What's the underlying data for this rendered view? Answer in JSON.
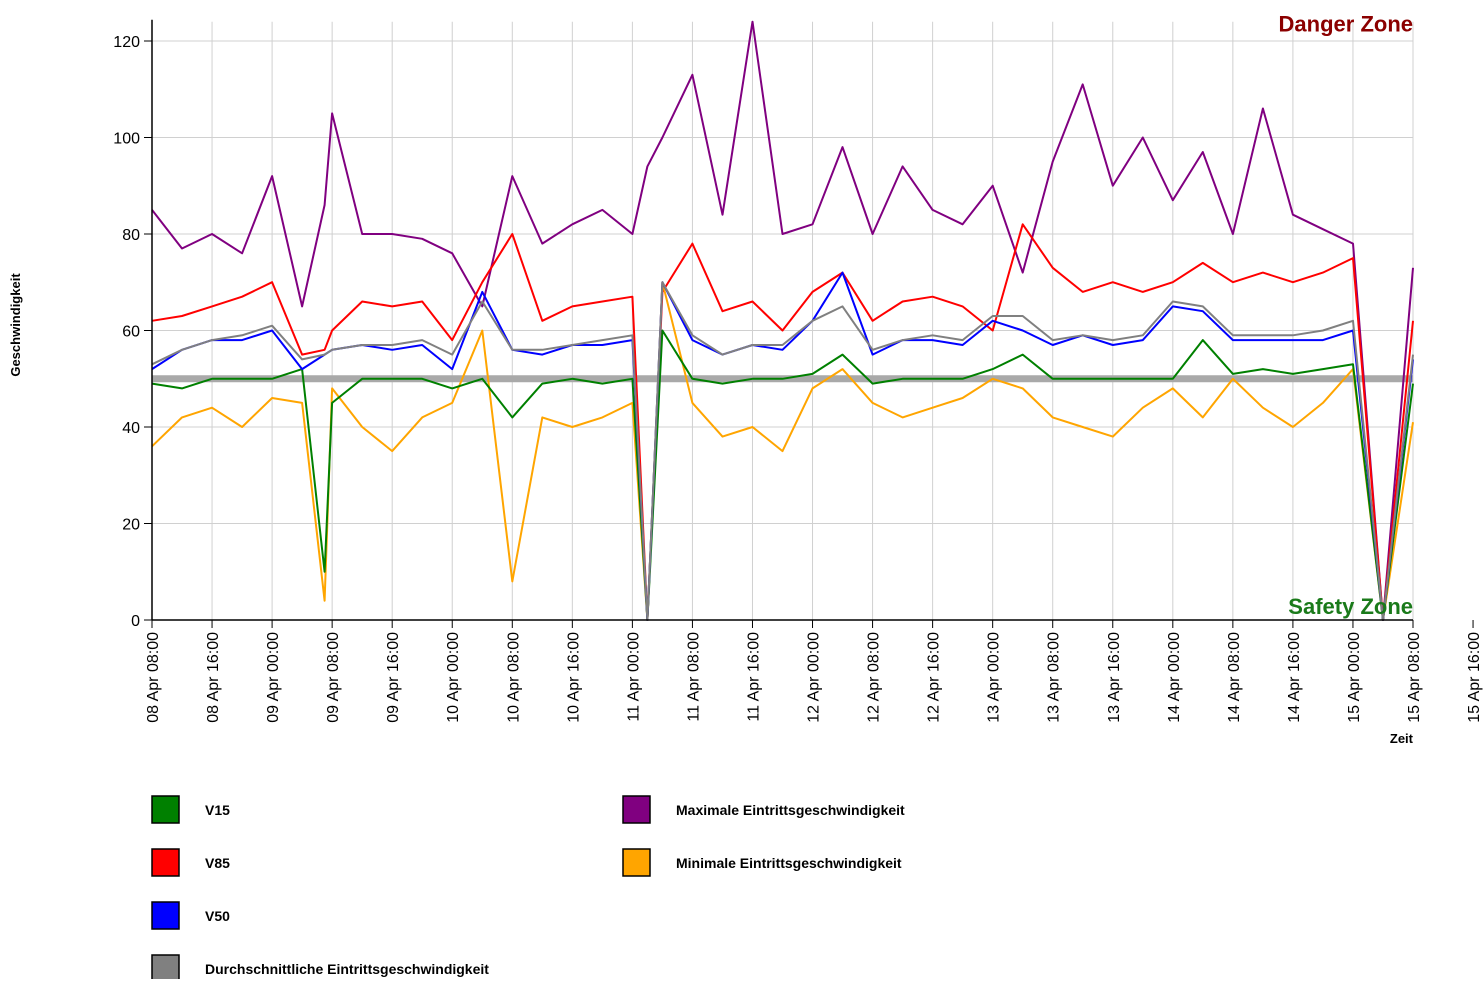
{
  "chart_data": {
    "type": "line",
    "annotations": {
      "top": "Danger Zone",
      "bottom": "Safety Zone"
    },
    "x_label": "Zeit",
    "y_label": "Geschwindigkeit",
    "x": [
      "08 Apr 08:00",
      "08 Apr 12:00",
      "08 Apr 16:00",
      "08 Apr 20:00",
      "09 Apr 00:00",
      "09 Apr 04:00",
      "09 Apr 07:00",
      "09 Apr 08:00",
      "09 Apr 12:00",
      "09 Apr 16:00",
      "09 Apr 20:00",
      "10 Apr 00:00",
      "10 Apr 04:00",
      "10 Apr 08:00",
      "10 Apr 12:00",
      "10 Apr 16:00",
      "10 Apr 20:00",
      "11 Apr 00:00",
      "11 Apr 02:00",
      "11 Apr 04:00",
      "11 Apr 08:00",
      "11 Apr 12:00",
      "11 Apr 16:00",
      "11 Apr 20:00",
      "12 Apr 00:00",
      "12 Apr 04:00",
      "12 Apr 08:00",
      "12 Apr 12:00",
      "12 Apr 16:00",
      "12 Apr 20:00",
      "13 Apr 00:00",
      "13 Apr 04:00",
      "13 Apr 08:00",
      "13 Apr 12:00",
      "13 Apr 16:00",
      "13 Apr 20:00",
      "14 Apr 00:00",
      "14 Apr 04:00",
      "14 Apr 08:00",
      "14 Apr 12:00",
      "14 Apr 16:00",
      "14 Apr 20:00",
      "15 Apr 00:00",
      "15 Apr 04:00",
      "15 Apr 08:00"
    ],
    "xlim": [
      "08 Apr 08:00",
      "15 Apr 08:00"
    ],
    "xticks": [
      "08 Apr 08:00",
      "08 Apr 16:00",
      "09 Apr 00:00",
      "09 Apr 08:00",
      "09 Apr 16:00",
      "10 Apr 00:00",
      "10 Apr 08:00",
      "10 Apr 16:00",
      "11 Apr 00:00",
      "11 Apr 08:00",
      "11 Apr 16:00",
      "12 Apr 00:00",
      "12 Apr 08:00",
      "12 Apr 16:00",
      "13 Apr 00:00",
      "13 Apr 08:00",
      "13 Apr 16:00",
      "14 Apr 00:00",
      "14 Apr 08:00",
      "14 Apr 16:00",
      "15 Apr 00:00",
      "15 Apr 08:00",
      "15 Apr 16:00"
    ],
    "ylim": [
      0,
      124
    ],
    "yticks": [
      0,
      20,
      40,
      60,
      80,
      100,
      120
    ],
    "grid": true,
    "reference_line": 50,
    "series": [
      {
        "name": "V15",
        "color": "#008000",
        "values": [
          49,
          48,
          50,
          50,
          50,
          52,
          10,
          45,
          50,
          50,
          50,
          48,
          50,
          42,
          49,
          50,
          49,
          50,
          0,
          60,
          50,
          49,
          50,
          50,
          51,
          55,
          49,
          50,
          50,
          50,
          52,
          55,
          50,
          50,
          50,
          50,
          50,
          58,
          51,
          52,
          51,
          52,
          53,
          0,
          49
        ]
      },
      {
        "name": "V85",
        "color": "#ff0000",
        "values": [
          62,
          63,
          65,
          67,
          70,
          55,
          56,
          60,
          66,
          65,
          66,
          58,
          70,
          80,
          62,
          65,
          66,
          67,
          0,
          68,
          78,
          64,
          66,
          60,
          68,
          72,
          62,
          66,
          67,
          65,
          60,
          82,
          73,
          68,
          70,
          68,
          70,
          74,
          70,
          72,
          70,
          72,
          75,
          0,
          62
        ]
      },
      {
        "name": "V50",
        "color": "#0000ff",
        "values": [
          52,
          56,
          58,
          58,
          60,
          52,
          55,
          56,
          57,
          56,
          57,
          52,
          68,
          56,
          55,
          57,
          57,
          58,
          0,
          70,
          58,
          55,
          57,
          56,
          62,
          72,
          55,
          58,
          58,
          57,
          62,
          60,
          57,
          59,
          57,
          58,
          65,
          64,
          58,
          58,
          58,
          58,
          60,
          0,
          54
        ]
      },
      {
        "name": "Durchschnittliche Eintrittsgeschwindigkeit",
        "color": "#808080",
        "values": [
          53,
          56,
          58,
          59,
          61,
          54,
          55,
          56,
          57,
          57,
          58,
          55,
          66,
          56,
          56,
          57,
          58,
          59,
          0,
          70,
          59,
          55,
          57,
          57,
          62,
          65,
          56,
          58,
          59,
          58,
          63,
          63,
          58,
          59,
          58,
          59,
          66,
          65,
          59,
          59,
          59,
          60,
          62,
          0,
          55
        ]
      },
      {
        "name": "Maximale Eintrittsgeschwindigkeit",
        "color": "#800080",
        "values": [
          85,
          77,
          80,
          76,
          92,
          65,
          86,
          105,
          80,
          80,
          79,
          76,
          65,
          92,
          78,
          82,
          85,
          80,
          94,
          100,
          113,
          84,
          124,
          80,
          82,
          98,
          80,
          94,
          85,
          82,
          90,
          72,
          95,
          111,
          90,
          100,
          87,
          97,
          80,
          106,
          84,
          81,
          78,
          0,
          73
        ]
      },
      {
        "name": "Minimale Eintrittsgeschwindigkeit",
        "color": "#ffa500",
        "values": [
          36,
          42,
          44,
          40,
          46,
          45,
          4,
          48,
          40,
          35,
          42,
          45,
          60,
          8,
          42,
          40,
          42,
          45,
          0,
          70,
          45,
          38,
          40,
          35,
          48,
          52,
          45,
          42,
          44,
          46,
          50,
          48,
          42,
          40,
          38,
          44,
          48,
          42,
          50,
          44,
          40,
          45,
          52,
          0,
          41
        ]
      }
    ]
  }
}
